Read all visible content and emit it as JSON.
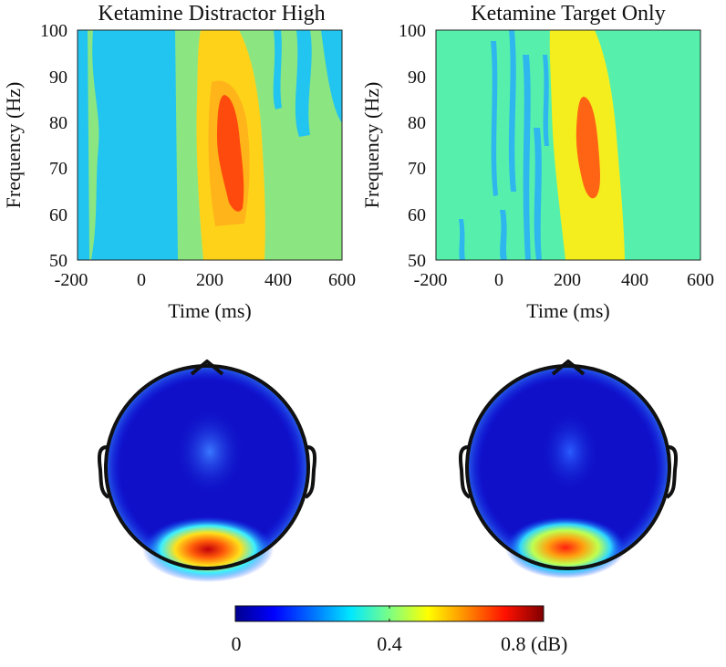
{
  "chart_data": [
    {
      "type": "heatmap",
      "title": "Ketamine Distractor High",
      "xlabel": "Time (ms)",
      "ylabel": "Frequency (Hz)",
      "xlim": [
        -200,
        600
      ],
      "ylim": [
        50,
        100
      ],
      "xticks": [
        "-200",
        "0",
        "200",
        "400",
        "600"
      ],
      "yticks": [
        "50",
        "60",
        "70",
        "80",
        "90",
        "100"
      ],
      "background_color": "#8be682",
      "regions": [
        {
          "name": "pre-stimulus-low",
          "t": [
            -200,
            100
          ],
          "f": [
            50,
            100
          ],
          "level": "low",
          "color": "#22c4f0"
        },
        {
          "name": "gamma-onset",
          "t": [
            150,
            380
          ],
          "f": [
            50,
            100
          ],
          "level": "medium",
          "color": "#ffd21a"
        },
        {
          "name": "gamma-peak",
          "t": [
            220,
            300
          ],
          "f": [
            60,
            88
          ],
          "level": "high",
          "color": "#ff4a0d"
        },
        {
          "name": "late-low",
          "t": [
            430,
            600
          ],
          "f": [
            80,
            100
          ],
          "level": "low",
          "color": "#22c4f0"
        }
      ]
    },
    {
      "type": "heatmap",
      "title": "Ketamine Target Only",
      "xlabel": "Time (ms)",
      "ylabel": "Frequency (Hz)",
      "xlim": [
        -200,
        600
      ],
      "ylim": [
        50,
        100
      ],
      "xticks": [
        "-200",
        "0",
        "200",
        "400",
        "600"
      ],
      "yticks": [
        "50",
        "60",
        "70",
        "80",
        "90",
        "100"
      ],
      "background_color": "#56f0ac",
      "regions": [
        {
          "name": "pre-stimulus-low",
          "t": [
            -20,
            120
          ],
          "f": [
            50,
            100
          ],
          "level": "low",
          "color": "#2eb6ee"
        },
        {
          "name": "gamma-onset",
          "t": [
            150,
            380
          ],
          "f": [
            50,
            100
          ],
          "level": "medium",
          "color": "#f5ee1e"
        },
        {
          "name": "gamma-peak",
          "t": [
            220,
            300
          ],
          "f": [
            63,
            85
          ],
          "level": "high",
          "color": "#ff6414"
        }
      ]
    },
    {
      "type": "heatmap",
      "subtype": "topomap",
      "name": "scalp-distractor-high",
      "hotspot": {
        "region": "occipital",
        "value_db": 0.75
      },
      "secondary": {
        "region": "central",
        "value_db": 0.12
      }
    },
    {
      "type": "heatmap",
      "subtype": "topomap",
      "name": "scalp-target-only",
      "hotspot": {
        "region": "occipital",
        "value_db": 0.62
      },
      "secondary": {
        "region": "central",
        "value_db": 0.08
      }
    }
  ],
  "colorbar": {
    "min": 0,
    "max": 0.8,
    "tick_labels": [
      "0",
      "0.4",
      "0.8 (dB)"
    ],
    "colormap": [
      "#00008f",
      "#0000ff",
      "#0080ff",
      "#00ffff",
      "#80ff80",
      "#ffff00",
      "#ff8000",
      "#ff0000",
      "#800000"
    ]
  }
}
